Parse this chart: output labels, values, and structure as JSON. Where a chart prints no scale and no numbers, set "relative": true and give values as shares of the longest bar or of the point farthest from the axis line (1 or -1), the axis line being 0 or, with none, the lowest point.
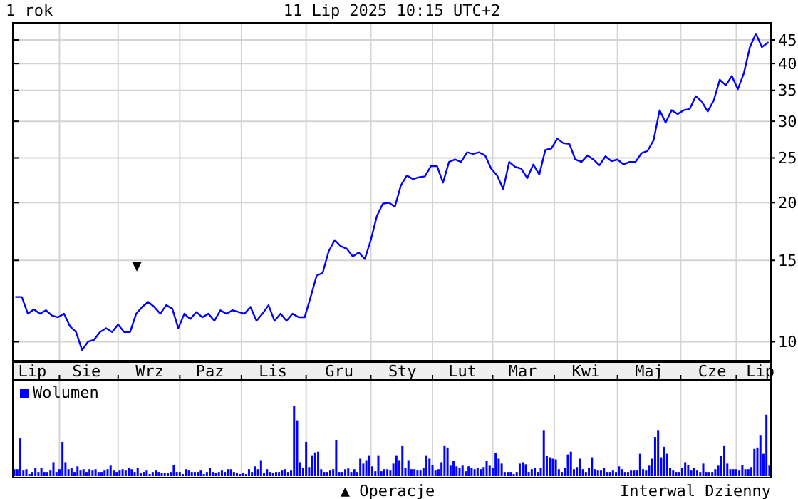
{
  "chart_data": [
    {
      "type": "line",
      "title": "1 rok",
      "subtitle": "11 Lip 2025 10:15 UTC+2",
      "log": true,
      "grid": true,
      "color": "#0000ff",
      "tick_labels": "y",
      "annotations": [
        "▲ Operacje",
        "Interwal Dzienny",
        "▼"
      ],
      "ylim": [
        9.1,
        49
      ],
      "yticks": [
        10,
        15,
        20,
        25,
        30,
        35,
        40,
        45
      ],
      "categories": [
        null,
        null,
        null,
        null,
        null,
        null,
        null,
        null,
        null,
        null,
        null,
        null,
        null,
        null,
        null,
        null,
        null,
        null,
        null,
        null,
        null,
        null,
        null,
        null,
        null,
        null,
        null,
        null,
        null,
        null,
        null,
        null,
        null,
        null,
        null,
        null,
        null,
        null,
        null,
        null,
        null,
        null,
        null,
        null,
        null,
        null,
        null,
        null,
        null,
        null,
        null,
        null,
        null,
        null,
        null,
        null,
        null,
        null,
        null,
        null,
        null,
        null,
        null,
        null,
        null,
        null,
        null,
        null,
        null,
        null,
        null,
        null,
        null,
        null,
        null,
        null,
        null,
        null,
        null,
        null,
        null,
        null,
        null,
        null,
        null,
        null,
        null,
        null,
        null,
        null,
        null,
        null,
        null,
        null,
        null,
        null,
        null,
        null,
        null,
        null,
        null,
        null,
        null,
        null,
        null,
        null,
        null,
        null,
        null,
        null,
        null,
        null,
        null,
        null,
        null,
        null,
        null,
        null,
        null,
        null,
        null,
        null,
        null,
        null,
        null,
        null
      ],
      "values": [
        12.5,
        12.5,
        11.5,
        11.75,
        11.5,
        11.7,
        11.4,
        11.3,
        11.5,
        10.8,
        10.5,
        9.6,
        10.0,
        10.1,
        10.5,
        10.7,
        10.5,
        10.9,
        10.5,
        10.5,
        11.5,
        11.9,
        12.2,
        11.9,
        11.5,
        12.0,
        11.8,
        10.7,
        11.5,
        11.2,
        11.6,
        11.3,
        11.5,
        11.1,
        11.7,
        11.5,
        11.7,
        11.6,
        11.5,
        11.9,
        11.1,
        11.5,
        12.0,
        11.1,
        11.5,
        11.1,
        11.5,
        11.3,
        11.3,
        12.5,
        13.9,
        14.1,
        15.7,
        16.6,
        16.1,
        15.9,
        15.3,
        15.6,
        15.1,
        16.6,
        18.7,
        19.9,
        20.0,
        19.6,
        21.8,
        22.9,
        22.5,
        22.7,
        22.8,
        24.0,
        24.0,
        22.1,
        24.5,
        24.8,
        24.5,
        25.7,
        25.5,
        25.7,
        25.3,
        23.7,
        22.9,
        21.4,
        24.5,
        23.9,
        23.7,
        22.6,
        24.2,
        23.0,
        26.0,
        26.2,
        27.5,
        26.9,
        26.8,
        24.8,
        24.5,
        25.3,
        24.8,
        24.1,
        25.2,
        24.6,
        24.8,
        24.2,
        24.5,
        24.5,
        25.6,
        25.9,
        27.3,
        31.7,
        29.8,
        31.7,
        31.1,
        31.7,
        31.9,
        34.0,
        33.1,
        31.5,
        33.3,
        36.9,
        35.9,
        37.6,
        35.2,
        38.1,
        43.4,
        46.4,
        43.4,
        44.4
      ]
    },
    {
      "type": "bar",
      "relative": true,
      "grid": "x",
      "legend": "top left",
      "categories": [
        null,
        null,
        null,
        null,
        null,
        null,
        "Lip",
        null,
        null,
        null,
        null,
        null,
        null,
        null,
        null,
        null,
        null,
        null,
        null,
        null,
        null,
        null,
        null,
        null,
        "Sie",
        null,
        null,
        null,
        null,
        null,
        null,
        null,
        null,
        null,
        null,
        null,
        null,
        null,
        null,
        null,
        null,
        null,
        null,
        null,
        null,
        "Wrz",
        null,
        null,
        null,
        null,
        null,
        null,
        null,
        null,
        null,
        null,
        null,
        null,
        null,
        null,
        null,
        null,
        null,
        null,
        null,
        "Paz",
        null,
        null,
        null,
        null,
        null,
        null,
        null,
        null,
        null,
        null,
        null,
        null,
        null,
        null,
        null,
        null,
        null,
        null,
        null,
        null,
        "Lis",
        null,
        null,
        null,
        null,
        null,
        null,
        null,
        null,
        null,
        null,
        null,
        null,
        null,
        null,
        null,
        null,
        null,
        null,
        null,
        null,
        null,
        "Gru",
        null,
        null,
        null,
        null,
        null,
        null,
        null,
        null,
        null,
        null,
        null,
        null,
        null,
        null,
        null,
        null,
        null,
        null,
        null,
        null,
        "Sty",
        null,
        null,
        null,
        null,
        null,
        null,
        null,
        null,
        null,
        null,
        null,
        null,
        null,
        null,
        null,
        null,
        null,
        null,
        null,
        "Lut",
        null,
        null,
        null,
        null,
        null,
        null,
        null,
        null,
        null,
        null,
        null,
        null,
        null,
        null,
        null,
        null,
        null,
        null,
        null,
        "Mar",
        null,
        null,
        null,
        null,
        null,
        null,
        null,
        null,
        null,
        null,
        null,
        null,
        null,
        null,
        null,
        null,
        null,
        null,
        null,
        null,
        "Kwi",
        null,
        null,
        null,
        null,
        null,
        null,
        null,
        null,
        null,
        null,
        null,
        null,
        null,
        null,
        null,
        null,
        null,
        null,
        null,
        null,
        "Maj",
        null,
        null,
        null,
        null,
        null,
        null,
        null,
        null,
        null,
        null,
        null,
        null,
        null,
        null,
        null,
        null,
        null,
        null,
        null,
        null,
        "Cze",
        null,
        null,
        null,
        null,
        null,
        null,
        null,
        null,
        null,
        null,
        null,
        null,
        null,
        null,
        null,
        "Lip",
        null,
        null,
        null
      ],
      "series": [
        {
          "name": "Wolumen",
          "color": "#0000ff",
          "values": [
            0.1,
            0.1,
            0.54,
            0.08,
            0.1,
            0.03,
            0.06,
            0.12,
            0.06,
            0.12,
            0.06,
            0.06,
            0.08,
            0.2,
            0.06,
            0.1,
            0.49,
            0.2,
            0.1,
            0.12,
            0.06,
            0.14,
            0.08,
            0.1,
            0.06,
            0.1,
            0.08,
            0.1,
            0.06,
            0.06,
            0.08,
            0.1,
            0.15,
            0.08,
            0.06,
            0.08,
            0.1,
            0.08,
            0.12,
            0.1,
            0.06,
            0.12,
            0.05,
            0.06,
            0.08,
            0.03,
            0.06,
            0.08,
            0.06,
            0.05,
            0.05,
            0.05,
            0.06,
            0.16,
            0.06,
            0.06,
            0.03,
            0.1,
            0.08,
            0.06,
            0.06,
            0.06,
            0.08,
            0.03,
            0.06,
            0.12,
            0.06,
            0.05,
            0.06,
            0.08,
            0.06,
            0.1,
            0.1,
            0.06,
            0.05,
            0.03,
            0.05,
            0.03,
            0.1,
            0.06,
            0.14,
            0.1,
            0.23,
            0.05,
            0.1,
            0.06,
            0.05,
            0.06,
            0.06,
            0.08,
            0.1,
            0.06,
            0.08,
            1,
            0.8,
            0.2,
            0.12,
            0.49,
            0.13,
            0.3,
            0.34,
            0.35,
            0.1,
            0.06,
            0.06,
            0.08,
            0.1,
            0.52,
            0.06,
            0.06,
            0.1,
            0.11,
            0.06,
            0.1,
            0.06,
            0.25,
            0.18,
            0.23,
            0.3,
            0.14,
            0.07,
            0.3,
            0.07,
            0.1,
            0.1,
            0.08,
            0.18,
            0.3,
            0.23,
            0.44,
            0.12,
            0.23,
            0.1,
            0.1,
            0.08,
            0.08,
            0.12,
            0.3,
            0.25,
            0.16,
            0.08,
            0.1,
            0.2,
            0.44,
            0.41,
            0.15,
            0.22,
            0.14,
            0.12,
            0.15,
            0.07,
            0.14,
            0.12,
            0.1,
            0.12,
            0.1,
            0.13,
            0.22,
            0.15,
            0.12,
            0.33,
            0.25,
            0.18,
            0.06,
            0.06,
            0.06,
            0.03,
            0.06,
            0.18,
            0.2,
            0.17,
            0.06,
            0.1,
            0.12,
            0.06,
            0.12,
            0.66,
            0.29,
            0.27,
            0.25,
            0.24,
            0.1,
            0.06,
            0.12,
            0.31,
            0.35,
            0.1,
            0.13,
            0.25,
            0.1,
            0.06,
            0.12,
            0.27,
            0.1,
            0.08,
            0.08,
            0.12,
            0.06,
            0.06,
            0.08,
            0.06,
            0.14,
            0.1,
            0.06,
            0.06,
            0.08,
            0.08,
            0.08,
            0.32,
            0.1,
            0.08,
            0.15,
            0.25,
            0.56,
            0.66,
            0.27,
            0.42,
            0.32,
            0.12,
            0.08,
            0.06,
            0.06,
            0.12,
            0.2,
            0.16,
            0.08,
            0.12,
            0.08,
            0.06,
            0.18,
            0.06,
            0.06,
            0.06,
            0.1,
            0.15,
            0.29,
            0.44,
            0.18,
            0.1,
            0.1,
            0.1,
            0.08,
            0.16,
            0.1,
            0.1,
            0.13,
            0.39,
            0.41,
            0.59,
            0.32,
            0.88,
            0.15
          ]
        }
      ]
    }
  ]
}
